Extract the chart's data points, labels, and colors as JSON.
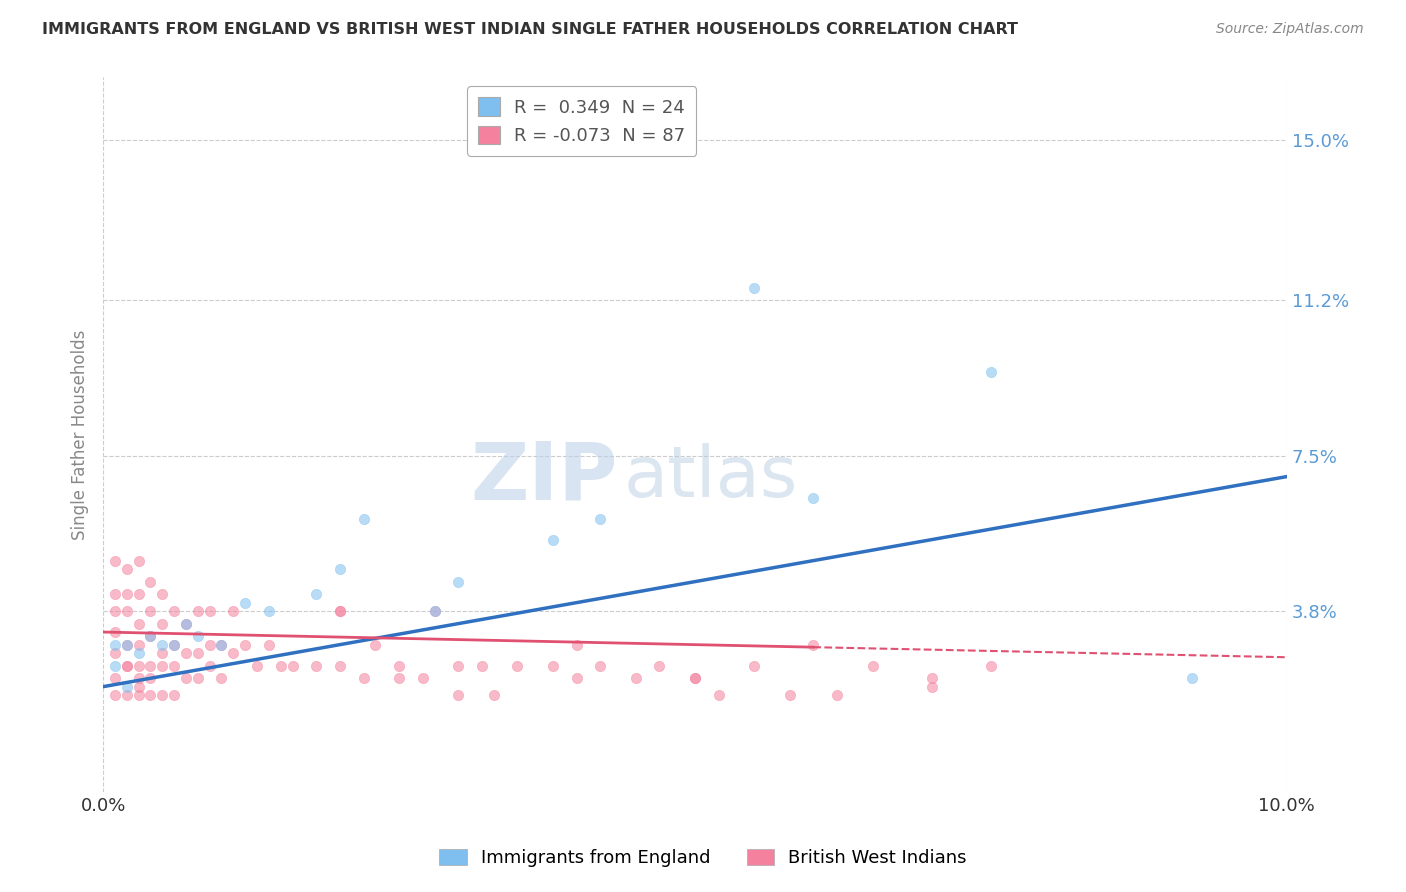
{
  "title": "IMMIGRANTS FROM ENGLAND VS BRITISH WEST INDIAN SINGLE FATHER HOUSEHOLDS CORRELATION CHART",
  "source": "Source: ZipAtlas.com",
  "ylabel": "Single Father Households",
  "xlim": [
    0.0,
    0.1
  ],
  "ylim": [
    -0.005,
    0.165
  ],
  "yticks": [
    0.038,
    0.075,
    0.112,
    0.15
  ],
  "ytick_labels": [
    "3.8%",
    "7.5%",
    "11.2%",
    "15.0%"
  ],
  "xticks": [
    0.0,
    0.1
  ],
  "xtick_labels": [
    "0.0%",
    "10.0%"
  ],
  "legend_r_entries": [
    {
      "label": "R =  0.349  N = 24",
      "color": "#7fbfef"
    },
    {
      "label": "R = -0.073  N = 87",
      "color": "#f4829e"
    }
  ],
  "series_england": {
    "color": "#7fbfef",
    "trend_color": "#3070c0",
    "x": [
      0.001,
      0.001,
      0.002,
      0.002,
      0.003,
      0.004,
      0.005,
      0.006,
      0.007,
      0.008,
      0.01,
      0.012,
      0.014,
      0.018,
      0.02,
      0.022,
      0.028,
      0.03,
      0.038,
      0.042,
      0.055,
      0.06,
      0.075,
      0.092
    ],
    "y": [
      0.025,
      0.03,
      0.02,
      0.03,
      0.028,
      0.032,
      0.03,
      0.03,
      0.035,
      0.032,
      0.03,
      0.04,
      0.038,
      0.042,
      0.048,
      0.06,
      0.038,
      0.045,
      0.055,
      0.06,
      0.115,
      0.065,
      0.095,
      0.022
    ],
    "trend_x": [
      0.0,
      0.1
    ],
    "trend_y": [
      0.02,
      0.07
    ]
  },
  "series_bwi": {
    "color": "#f4829e",
    "trend_color": "#e05070",
    "x": [
      0.001,
      0.001,
      0.001,
      0.001,
      0.001,
      0.001,
      0.001,
      0.002,
      0.002,
      0.002,
      0.002,
      0.002,
      0.002,
      0.002,
      0.003,
      0.003,
      0.003,
      0.003,
      0.003,
      0.003,
      0.003,
      0.003,
      0.004,
      0.004,
      0.004,
      0.004,
      0.004,
      0.004,
      0.005,
      0.005,
      0.005,
      0.005,
      0.005,
      0.006,
      0.006,
      0.006,
      0.006,
      0.007,
      0.007,
      0.007,
      0.008,
      0.008,
      0.008,
      0.009,
      0.009,
      0.009,
      0.01,
      0.01,
      0.011,
      0.011,
      0.012,
      0.013,
      0.014,
      0.015,
      0.016,
      0.018,
      0.02,
      0.02,
      0.022,
      0.023,
      0.025,
      0.027,
      0.028,
      0.03,
      0.032,
      0.033,
      0.035,
      0.038,
      0.04,
      0.042,
      0.045,
      0.047,
      0.05,
      0.052,
      0.055,
      0.058,
      0.062,
      0.065,
      0.07,
      0.075,
      0.02,
      0.025,
      0.03,
      0.04,
      0.05,
      0.06,
      0.07
    ],
    "y": [
      0.028,
      0.033,
      0.038,
      0.042,
      0.05,
      0.022,
      0.018,
      0.025,
      0.03,
      0.038,
      0.042,
      0.048,
      0.018,
      0.025,
      0.022,
      0.03,
      0.035,
      0.042,
      0.05,
      0.02,
      0.025,
      0.018,
      0.022,
      0.032,
      0.038,
      0.045,
      0.025,
      0.018,
      0.028,
      0.035,
      0.042,
      0.025,
      0.018,
      0.03,
      0.038,
      0.025,
      0.018,
      0.028,
      0.035,
      0.022,
      0.028,
      0.038,
      0.022,
      0.03,
      0.038,
      0.025,
      0.03,
      0.022,
      0.028,
      0.038,
      0.03,
      0.025,
      0.03,
      0.025,
      0.025,
      0.025,
      0.038,
      0.025,
      0.022,
      0.03,
      0.022,
      0.022,
      0.038,
      0.025,
      0.025,
      0.018,
      0.025,
      0.025,
      0.022,
      0.025,
      0.022,
      0.025,
      0.022,
      0.018,
      0.025,
      0.018,
      0.018,
      0.025,
      0.022,
      0.025,
      0.038,
      0.025,
      0.018,
      0.03,
      0.022,
      0.03,
      0.02
    ],
    "trend_x": [
      0.0,
      0.1
    ],
    "trend_y": [
      0.033,
      0.027
    ]
  },
  "watermark_zip": "ZIP",
  "watermark_atlas": "atlas",
  "bg_color": "#ffffff",
  "grid_color": "#cccccc",
  "title_color": "#333333",
  "axis_label_color": "#888888",
  "marker_size": 55,
  "marker_alpha": 0.55,
  "marker_linewidth": 0.5
}
